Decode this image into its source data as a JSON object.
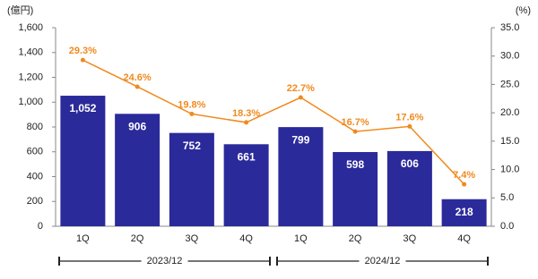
{
  "chart_data": {
    "type": "bar",
    "y_unit": "(億円)",
    "y2_unit": "(%)",
    "categories": [
      "1Q",
      "2Q",
      "3Q",
      "4Q",
      "1Q",
      "2Q",
      "3Q",
      "4Q"
    ],
    "x_groups": [
      "2023/12",
      "2024/12"
    ],
    "series": [
      {
        "type": "bar",
        "color": "#2b2a9a",
        "values": [
          1052,
          906,
          752,
          661,
          799,
          598,
          606,
          218
        ],
        "value_labels": [
          "1,052",
          "906",
          "752",
          "661",
          "799",
          "598",
          "606",
          "218"
        ]
      },
      {
        "type": "line",
        "axis": "y2",
        "color": "#f08a1e",
        "values": [
          29.3,
          24.6,
          19.8,
          18.3,
          22.7,
          16.7,
          17.6,
          7.4
        ],
        "value_labels": [
          "29.3%",
          "24.6%",
          "19.8%",
          "18.3%",
          "22.7%",
          "16.7%",
          "17.6%",
          "7.4%"
        ]
      }
    ],
    "ylim": [
      0,
      1600
    ],
    "yticks": [
      0,
      200,
      400,
      600,
      800,
      {
        "value": 1000,
        "label": "1,000"
      },
      {
        "value": 1200,
        "label": "1,200"
      },
      {
        "value": 1400,
        "label": "1,400"
      },
      {
        "value": 1600,
        "label": "1,600"
      }
    ],
    "y2lim": [
      0,
      35
    ],
    "y2ticks": [
      {
        "value": 0,
        "label": "0.0"
      },
      {
        "value": 5,
        "label": "5.0"
      },
      {
        "value": 10,
        "label": "10.0"
      },
      {
        "value": 15,
        "label": "15.0"
      },
      {
        "value": 20,
        "label": "20.0"
      },
      {
        "value": 25,
        "label": "25.0"
      },
      {
        "value": 30,
        "label": "30.0"
      },
      {
        "value": 35,
        "label": "35.0"
      }
    ]
  }
}
